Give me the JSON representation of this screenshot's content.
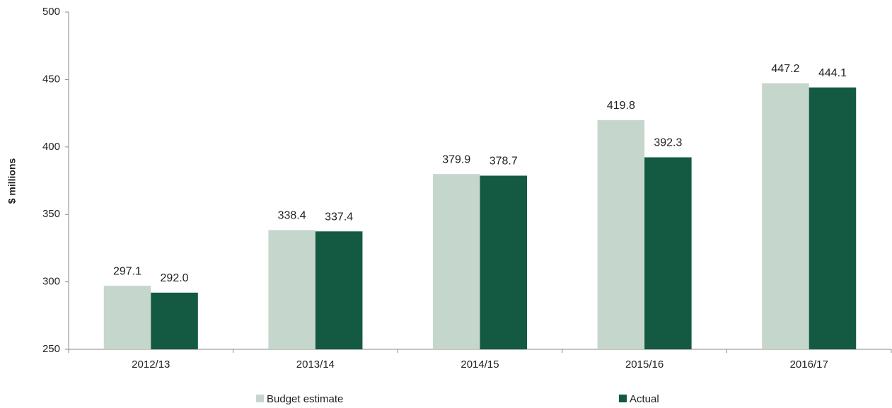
{
  "chart_data": {
    "type": "bar",
    "y_label": "$ millions",
    "categories": [
      "2012/13",
      "2013/14",
      "2014/15",
      "2015/16",
      "2016/17"
    ],
    "series": [
      {
        "name": "Budget estimate",
        "color": "#c5d6cd",
        "values": [
          297.1,
          338.4,
          379.9,
          419.8,
          447.2
        ],
        "value_labels": [
          "297.1",
          "338.4",
          "379.9",
          "419.8",
          "447.2"
        ]
      },
      {
        "name": "Actual",
        "color": "#145a42",
        "values": [
          292.0,
          337.4,
          378.7,
          392.3,
          444.1
        ],
        "value_labels": [
          "292.0",
          "337.4",
          "378.7",
          "392.3",
          "444.1"
        ]
      }
    ],
    "ylim": [
      250,
      500
    ],
    "yticks": [
      250,
      300,
      350,
      400,
      450,
      500
    ],
    "grid": false,
    "legend": "bottom"
  }
}
